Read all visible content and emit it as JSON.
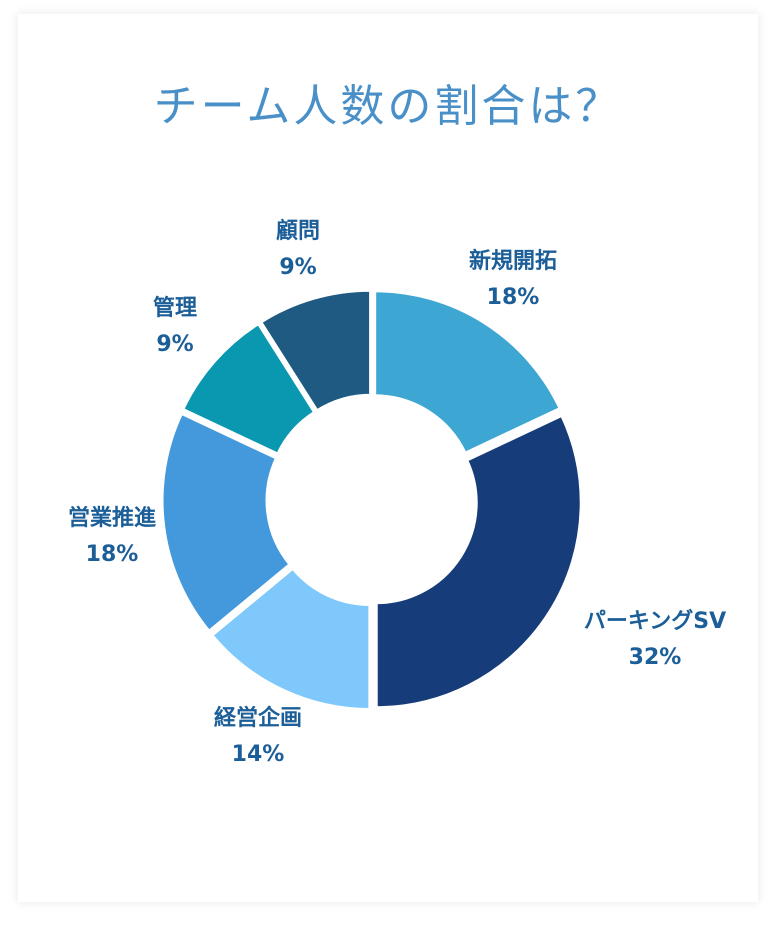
{
  "title": "チーム人数の割合は？",
  "chart_data": {
    "type": "pie",
    "title": "チーム人数の割合は？",
    "label_color": "#1b5e98",
    "slices": [
      {
        "label": "新規開拓",
        "value": 18,
        "display": "18%",
        "color": "#3ea6d3"
      },
      {
        "label": "パーキングSV",
        "value": 32,
        "display": "32%",
        "color": "#173c7a"
      },
      {
        "label": "経営企画",
        "value": 14,
        "display": "14%",
        "color": "#7ec8fb"
      },
      {
        "label": "営業推進",
        "value": 18,
        "display": "18%",
        "color": "#4499dc"
      },
      {
        "label": "管理",
        "value": 9,
        "display": "9%",
        "color": "#0a97b0"
      },
      {
        "label": "顧問",
        "value": 9,
        "display": "9%",
        "color": "#1f5a82"
      }
    ]
  }
}
